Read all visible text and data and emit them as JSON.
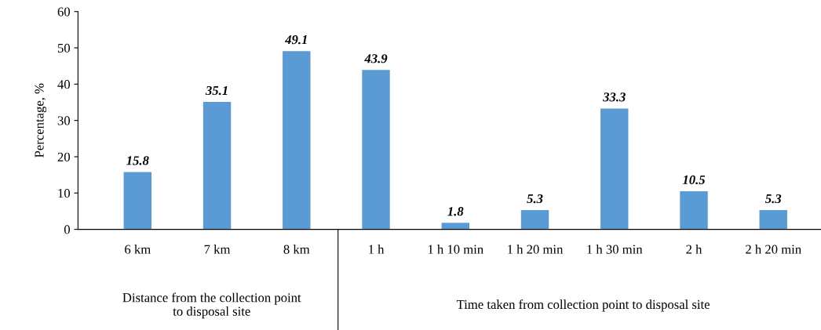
{
  "chart_data": {
    "type": "bar",
    "categories": [
      "6 km",
      "7 km",
      "8 km",
      "1 h",
      "1 h 10 min",
      "1 h 20 min",
      "1 h 30 min",
      "2 h",
      "2 h 20 min"
    ],
    "values": [
      15.8,
      35.1,
      49.1,
      43.9,
      1.8,
      5.3,
      33.3,
      10.5,
      5.3
    ],
    "color": "#5b9bd5",
    "ylabel": "Percentage, %",
    "ylim": [
      0,
      60
    ],
    "yticks": [
      0,
      10,
      20,
      30,
      40,
      50,
      60
    ],
    "data_labels": true,
    "grid": false,
    "legend": false,
    "annotations": [
      "Distance from the collection point\nto disposal site",
      "Time taken from collection point to disposal site"
    ]
  }
}
